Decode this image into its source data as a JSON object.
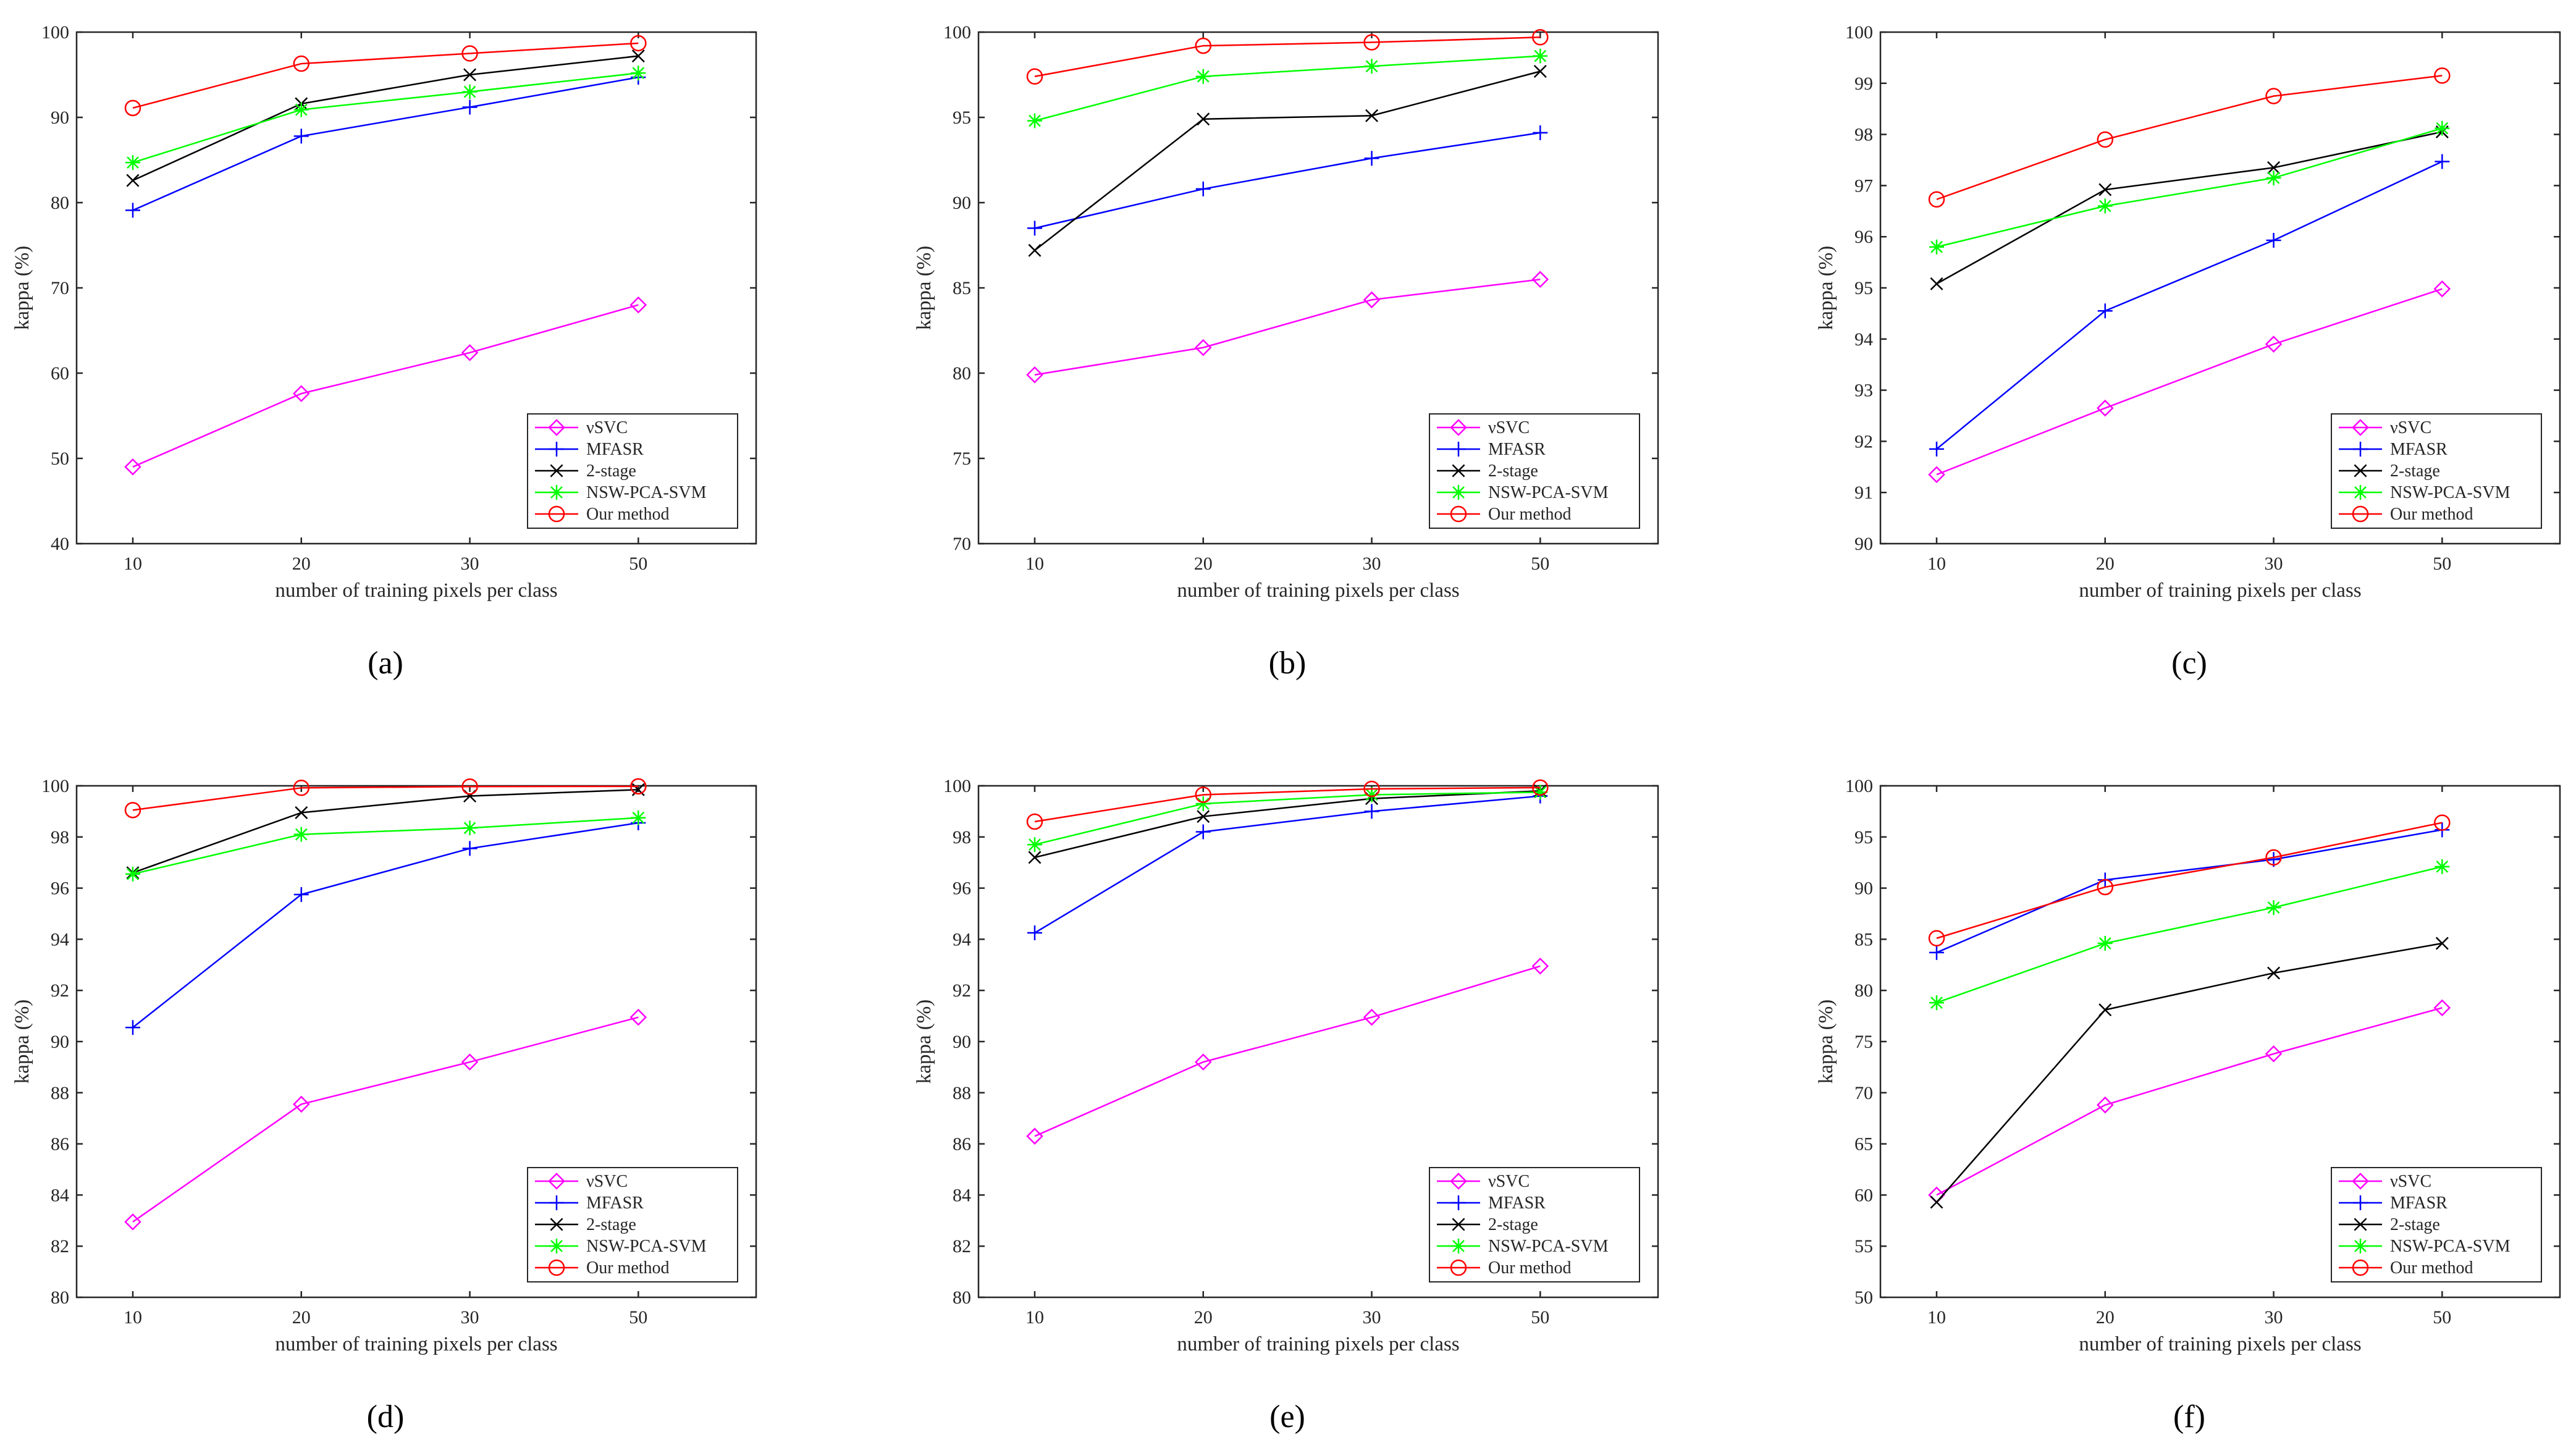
{
  "figure_labels": [
    "(a)",
    "(b)",
    "(c)",
    "(d)",
    "(e)",
    "(f)"
  ],
  "colors": {
    "nusvc": "#ff00ff",
    "mfasr": "#0000ff",
    "two_stage": "#000000",
    "nsw": "#00ff00",
    "ours": "#ff0000"
  },
  "chart_data": [
    {
      "type": "line",
      "panel": "(a)",
      "xlabel": "number of training pixels per class",
      "ylabel": "kappa (%)",
      "x": [
        10,
        20,
        30,
        50
      ],
      "xlim": [
        0,
        40
      ],
      "ylim": [
        40,
        100
      ],
      "yticks": [
        40,
        50,
        60,
        70,
        80,
        90,
        100
      ],
      "legend_position": "bottom-right",
      "series": [
        {
          "name": "νSVC",
          "marker": "diamond",
          "color": "#ff00ff",
          "values": [
            49.0,
            57.6,
            62.4,
            68.0
          ]
        },
        {
          "name": "MFASR",
          "marker": "plus",
          "color": "#0000ff",
          "values": [
            79.1,
            87.8,
            91.2,
            94.7
          ]
        },
        {
          "name": "2-stage",
          "marker": "cross",
          "color": "#000000",
          "values": [
            82.6,
            91.6,
            95.0,
            97.2
          ]
        },
        {
          "name": "NSW-PCA-SVM",
          "marker": "star",
          "color": "#00ff00",
          "values": [
            84.7,
            90.9,
            93.0,
            95.2
          ]
        },
        {
          "name": "Our method",
          "marker": "circle",
          "color": "#ff0000",
          "values": [
            91.1,
            96.3,
            97.5,
            98.7
          ]
        }
      ]
    },
    {
      "type": "line",
      "panel": "(b)",
      "xlabel": "number of training pixels per class",
      "ylabel": "kappa (%)",
      "x": [
        10,
        20,
        30,
        50
      ],
      "xlim": [
        0,
        40
      ],
      "ylim": [
        70,
        100
      ],
      "yticks": [
        70,
        75,
        80,
        85,
        90,
        95,
        100
      ],
      "legend_position": "bottom-right",
      "series": [
        {
          "name": "νSVC",
          "marker": "diamond",
          "color": "#ff00ff",
          "values": [
            79.9,
            81.5,
            84.3,
            85.5
          ]
        },
        {
          "name": "MFASR",
          "marker": "plus",
          "color": "#0000ff",
          "values": [
            88.5,
            90.8,
            92.6,
            94.1
          ]
        },
        {
          "name": "2-stage",
          "marker": "cross",
          "color": "#000000",
          "values": [
            87.2,
            94.9,
            95.1,
            97.7
          ]
        },
        {
          "name": "NSW-PCA-SVM",
          "marker": "star",
          "color": "#00ff00",
          "values": [
            94.8,
            97.4,
            98.0,
            98.6
          ]
        },
        {
          "name": "Our method",
          "marker": "circle",
          "color": "#ff0000",
          "values": [
            97.4,
            99.2,
            99.4,
            99.7
          ]
        }
      ]
    },
    {
      "type": "line",
      "panel": "(c)",
      "xlabel": "number of training pixels per class",
      "ylabel": "kappa (%)",
      "x": [
        10,
        20,
        30,
        50
      ],
      "xlim": [
        0,
        40
      ],
      "ylim": [
        90,
        100
      ],
      "yticks": [
        90,
        91,
        92,
        93,
        94,
        95,
        96,
        97,
        98,
        99,
        100
      ],
      "legend_position": "bottom-right",
      "series": [
        {
          "name": "νSVC",
          "marker": "diamond",
          "color": "#ff00ff",
          "values": [
            91.35,
            92.65,
            93.9,
            94.98
          ]
        },
        {
          "name": "MFASR",
          "marker": "plus",
          "color": "#0000ff",
          "values": [
            91.85,
            94.55,
            95.93,
            97.47
          ]
        },
        {
          "name": "2-stage",
          "marker": "cross",
          "color": "#000000",
          "values": [
            95.08,
            96.92,
            97.35,
            98.05
          ]
        },
        {
          "name": "NSW-PCA-SVM",
          "marker": "star",
          "color": "#00ff00",
          "values": [
            95.8,
            96.6,
            97.15,
            98.12
          ]
        },
        {
          "name": "Our method",
          "marker": "circle",
          "color": "#ff0000",
          "values": [
            96.73,
            97.9,
            98.75,
            99.15
          ]
        }
      ]
    },
    {
      "type": "line",
      "panel": "(d)",
      "xlabel": "number of training pixels per class",
      "ylabel": "kappa (%)",
      "x": [
        10,
        20,
        30,
        50
      ],
      "xlim": [
        0,
        40
      ],
      "ylim": [
        80,
        100
      ],
      "yticks": [
        80,
        82,
        84,
        86,
        88,
        90,
        92,
        94,
        96,
        98,
        100
      ],
      "legend_position": "bottom-right",
      "series": [
        {
          "name": "νSVC",
          "marker": "diamond",
          "color": "#ff00ff",
          "values": [
            82.95,
            87.55,
            89.2,
            90.95
          ]
        },
        {
          "name": "MFASR",
          "marker": "plus",
          "color": "#0000ff",
          "values": [
            90.55,
            95.75,
            97.55,
            98.55
          ]
        },
        {
          "name": "2-stage",
          "marker": "cross",
          "color": "#000000",
          "values": [
            96.6,
            98.95,
            99.6,
            99.85
          ]
        },
        {
          "name": "NSW-PCA-SVM",
          "marker": "star",
          "color": "#00ff00",
          "values": [
            96.55,
            98.1,
            98.35,
            98.75
          ]
        },
        {
          "name": "Our method",
          "marker": "circle",
          "color": "#ff0000",
          "values": [
            99.05,
            99.92,
            99.97,
            99.98
          ]
        }
      ]
    },
    {
      "type": "line",
      "panel": "(e)",
      "xlabel": "number of training pixels per class",
      "ylabel": "kappa (%)",
      "x": [
        10,
        20,
        30,
        50
      ],
      "xlim": [
        0,
        40
      ],
      "ylim": [
        80,
        100
      ],
      "yticks": [
        80,
        82,
        84,
        86,
        88,
        90,
        92,
        94,
        96,
        98,
        100
      ],
      "legend_position": "bottom-right",
      "series": [
        {
          "name": "νSVC",
          "marker": "diamond",
          "color": "#ff00ff",
          "values": [
            86.3,
            89.2,
            90.95,
            92.95
          ]
        },
        {
          "name": "MFASR",
          "marker": "plus",
          "color": "#0000ff",
          "values": [
            94.25,
            98.2,
            99.0,
            99.6
          ]
        },
        {
          "name": "2-stage",
          "marker": "cross",
          "color": "#000000",
          "values": [
            97.2,
            98.8,
            99.5,
            99.8
          ]
        },
        {
          "name": "NSW-PCA-SVM",
          "marker": "star",
          "color": "#00ff00",
          "values": [
            97.7,
            99.3,
            99.65,
            99.75
          ]
        },
        {
          "name": "Our method",
          "marker": "circle",
          "color": "#ff0000",
          "values": [
            98.6,
            99.65,
            99.88,
            99.93
          ]
        }
      ]
    },
    {
      "type": "line",
      "panel": "(f)",
      "xlabel": "number of training pixels per class",
      "ylabel": "kappa (%)",
      "x": [
        10,
        20,
        30,
        50
      ],
      "xlim": [
        0,
        40
      ],
      "ylim": [
        50,
        100
      ],
      "yticks": [
        50,
        55,
        60,
        65,
        70,
        75,
        80,
        85,
        90,
        95,
        100
      ],
      "legend_position": "bottom-right",
      "series": [
        {
          "name": "νSVC",
          "marker": "diamond",
          "color": "#ff00ff",
          "values": [
            60.0,
            68.8,
            73.8,
            78.3
          ]
        },
        {
          "name": "MFASR",
          "marker": "plus",
          "color": "#0000ff",
          "values": [
            83.7,
            90.8,
            92.8,
            95.7
          ]
        },
        {
          "name": "2-stage",
          "marker": "cross",
          "color": "#000000",
          "values": [
            59.3,
            78.1,
            81.7,
            84.6
          ]
        },
        {
          "name": "NSW-PCA-SVM",
          "marker": "star",
          "color": "#00ff00",
          "values": [
            78.8,
            84.6,
            88.1,
            92.1
          ]
        },
        {
          "name": "Our method",
          "marker": "circle",
          "color": "#ff0000",
          "values": [
            85.1,
            90.1,
            93.0,
            96.4
          ]
        }
      ]
    }
  ]
}
